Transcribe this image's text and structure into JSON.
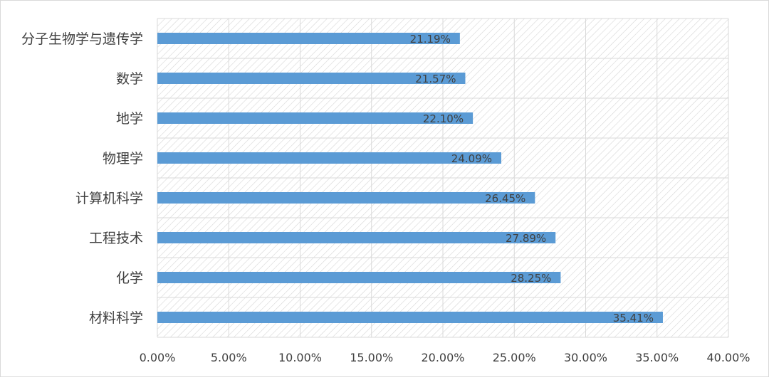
{
  "chart_data": {
    "type": "bar",
    "orientation": "horizontal",
    "title": "",
    "xlabel": "",
    "ylabel": "",
    "categories": [
      "分子生物学与遗传学",
      "数学",
      "地学",
      "物理学",
      "计算机科学",
      "工程技术",
      "化学",
      "材料科学"
    ],
    "values": [
      21.19,
      21.57,
      22.1,
      24.09,
      26.45,
      27.89,
      28.25,
      35.41
    ],
    "data_labels": [
      "21.19%",
      "21.57%",
      "22.10%",
      "24.09%",
      "26.45%",
      "27.89%",
      "28.25%",
      "35.41%"
    ],
    "x_ticks": [
      "0.00%",
      "5.00%",
      "10.00%",
      "15.00%",
      "20.00%",
      "25.00%",
      "30.00%",
      "35.00%",
      "40.00%"
    ],
    "xlim": [
      0,
      40
    ],
    "grid": true,
    "legend": "none",
    "colors": {
      "bar": "#5b9bd5",
      "grid": "#d9d9d9",
      "hatch": "#d6d6d6",
      "text": "#404040"
    }
  }
}
